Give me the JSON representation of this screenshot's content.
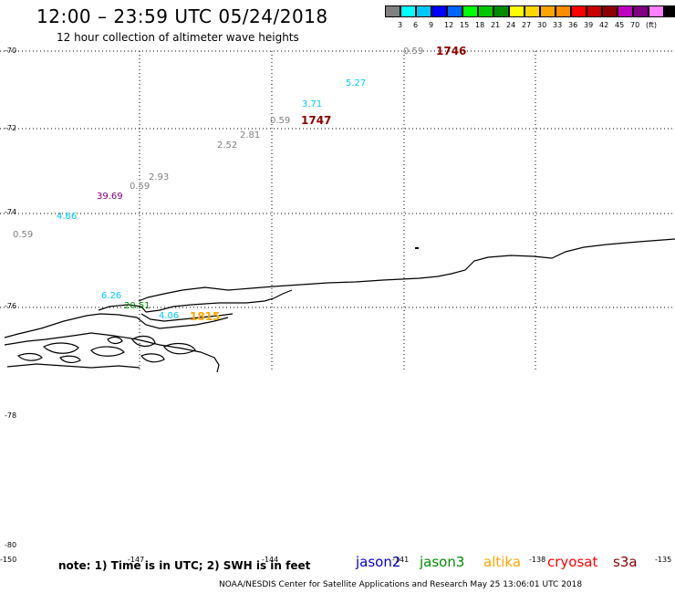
{
  "header": {
    "title": "12:00 – 23:59 UTC 05/24/2018",
    "subtitle": "12 hour collection of altimeter wave heights"
  },
  "scale_bar": {
    "colors": [
      "#808080",
      "#00ffff",
      "#00c8ff",
      "#0000ff",
      "#0064ff",
      "#00ff00",
      "#00c800",
      "#008c00",
      "#ffff00",
      "#ffd700",
      "#ffa500",
      "#ff8c00",
      "#ff0000",
      "#c80000",
      "#8b0000",
      "#c000c0",
      "#800080",
      "#ff80ff",
      "#000000"
    ],
    "labels": [
      "3",
      "6",
      "9",
      "12",
      "15",
      "18",
      "21",
      "24",
      "27",
      "30",
      "33",
      "36",
      "39",
      "42",
      "45",
      "70",
      "(ft)"
    ]
  },
  "axes": {
    "lat_labels": [
      "-70",
      "-72",
      "-74",
      "-76",
      "-78",
      "-80"
    ],
    "lon_labels": [
      "-150",
      "-147",
      "-144",
      "-141",
      "-138",
      "-135"
    ]
  },
  "observations": [
    {
      "text": "0.59",
      "color": "#808080"
    },
    {
      "text": "1746",
      "color": "#8b0000"
    },
    {
      "text": "5.27",
      "color": "#00c8ff"
    },
    {
      "text": "3.71",
      "color": "#00c8ff"
    },
    {
      "text": "0.59",
      "color": "#808080"
    },
    {
      "text": "1747",
      "color": "#8b0000"
    },
    {
      "text": "2.81",
      "color": "#808080"
    },
    {
      "text": "2.52",
      "color": "#808080"
    },
    {
      "text": "2.93",
      "color": "#808080"
    },
    {
      "text": "0.59",
      "color": "#808080"
    },
    {
      "text": "39.69",
      "color": "#800080"
    },
    {
      "text": "4.66",
      "color": "#00c8ff"
    },
    {
      "text": "0.59",
      "color": "#808080"
    },
    {
      "text": "6.26",
      "color": "#00c8ff"
    },
    {
      "text": "20.51",
      "color": "#008c00"
    },
    {
      "text": "4.06",
      "color": "#00c8ff"
    },
    {
      "text": "1815",
      "color": "#ffa500"
    }
  ],
  "footer": {
    "note": "note:  1) Time is in UTC;  2) SWH is in feet",
    "satellites": [
      {
        "name": "jason2",
        "color": "#0000c8"
      },
      {
        "name": "jason3",
        "color": "#008c00"
      },
      {
        "name": "altika",
        "color": "#ffa500"
      },
      {
        "name": "cryosat",
        "color": "#ff0000"
      },
      {
        "name": "s3a",
        "color": "#8b0000"
      }
    ],
    "credit": "NOAA/NESDIS Center for Satellite Applications and Research    May 25 13:06:01 UTC 2018"
  }
}
